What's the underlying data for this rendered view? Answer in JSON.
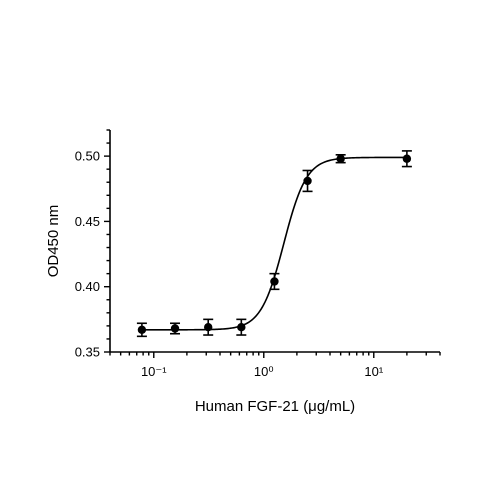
{
  "chart_data": {
    "type": "scatter",
    "title": "",
    "xlabel": "Human FGF-21 (μg/mL)",
    "ylabel": "OD450 nm",
    "x_scale": "log",
    "xlim": [
      0.04,
      40
    ],
    "ylim": [
      0.35,
      0.52
    ],
    "x_ticks": [
      {
        "value": 0.1,
        "label": "10⁻¹"
      },
      {
        "value": 1,
        "label": "10⁰"
      },
      {
        "value": 10,
        "label": "10¹"
      }
    ],
    "y_ticks": [
      {
        "value": 0.35,
        "label": "0.35"
      },
      {
        "value": 0.4,
        "label": "0.40"
      },
      {
        "value": 0.45,
        "label": "0.45"
      },
      {
        "value": 0.5,
        "label": "0.50"
      }
    ],
    "series": [
      {
        "points": [
          {
            "x": 0.078,
            "y": 0.367,
            "err": 0.005
          },
          {
            "x": 0.156,
            "y": 0.368,
            "err": 0.004
          },
          {
            "x": 0.3125,
            "y": 0.369,
            "err": 0.006
          },
          {
            "x": 0.625,
            "y": 0.369,
            "err": 0.006
          },
          {
            "x": 1.25,
            "y": 0.404,
            "err": 0.006
          },
          {
            "x": 2.5,
            "y": 0.481,
            "err": 0.008
          },
          {
            "x": 5,
            "y": 0.498,
            "err": 0.003
          },
          {
            "x": 20,
            "y": 0.498,
            "err": 0.006
          }
        ],
        "fit": {
          "model": "4PL",
          "bottom": 0.367,
          "top": 0.499,
          "ec50": 1.52,
          "hill": 4.2
        }
      }
    ],
    "grid": false,
    "legend": "none"
  }
}
